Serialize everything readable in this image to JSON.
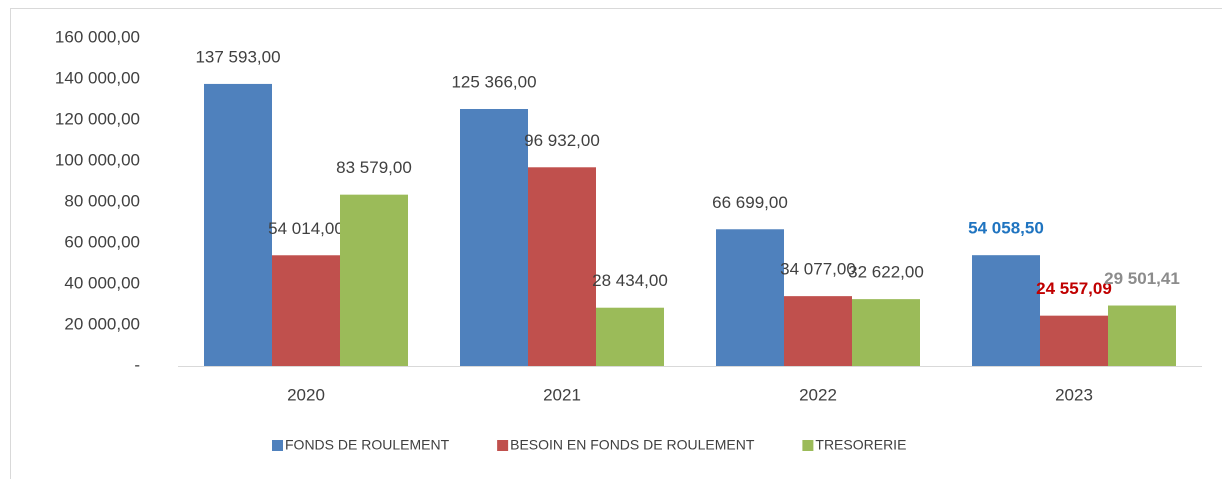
{
  "chart_data": {
    "type": "bar",
    "categories": [
      "2020",
      "2021",
      "2022",
      "2023"
    ],
    "series": [
      {
        "name": "FONDS DE ROULEMENT",
        "color": "#4f81bd",
        "values": [
          137593,
          125366,
          66699,
          54058.5
        ],
        "value_labels": [
          "137 593,00",
          "125 366,00",
          "66 699,00",
          "54 058,50"
        ],
        "highlight_label_color": "#1f74c0"
      },
      {
        "name": "BESOIN EN FONDS DE ROULEMENT",
        "color": "#c0504d",
        "values": [
          54014,
          96932,
          34077,
          24557.09
        ],
        "value_labels": [
          "54 014,00",
          "96 932,00",
          "34 077,00",
          "24 557,09"
        ],
        "highlight_label_color": "#c00000"
      },
      {
        "name": "TRESORERIE",
        "color": "#9bbb59",
        "values": [
          83579,
          28434,
          32622,
          29501.41
        ],
        "value_labels": [
          "83 579,00",
          "28 434,00",
          "32 622,00",
          "29 501,41"
        ],
        "highlight_label_color": "#8c8c8c"
      }
    ],
    "highlight_category": "2023",
    "ylim": [
      0,
      160000
    ],
    "yticks": [
      {
        "value": 0,
        "label": "-"
      },
      {
        "value": 20000,
        "label": "20 000,00"
      },
      {
        "value": 40000,
        "label": "40 000,00"
      },
      {
        "value": 60000,
        "label": "60 000,00"
      },
      {
        "value": 80000,
        "label": "80 000,00"
      },
      {
        "value": 100000,
        "label": "100 000,00"
      },
      {
        "value": 120000,
        "label": "120 000,00"
      },
      {
        "value": 140000,
        "label": "140 000,00"
      },
      {
        "value": 160000,
        "label": "160 000,00"
      }
    ],
    "grid": false,
    "legend": "bottom"
  }
}
